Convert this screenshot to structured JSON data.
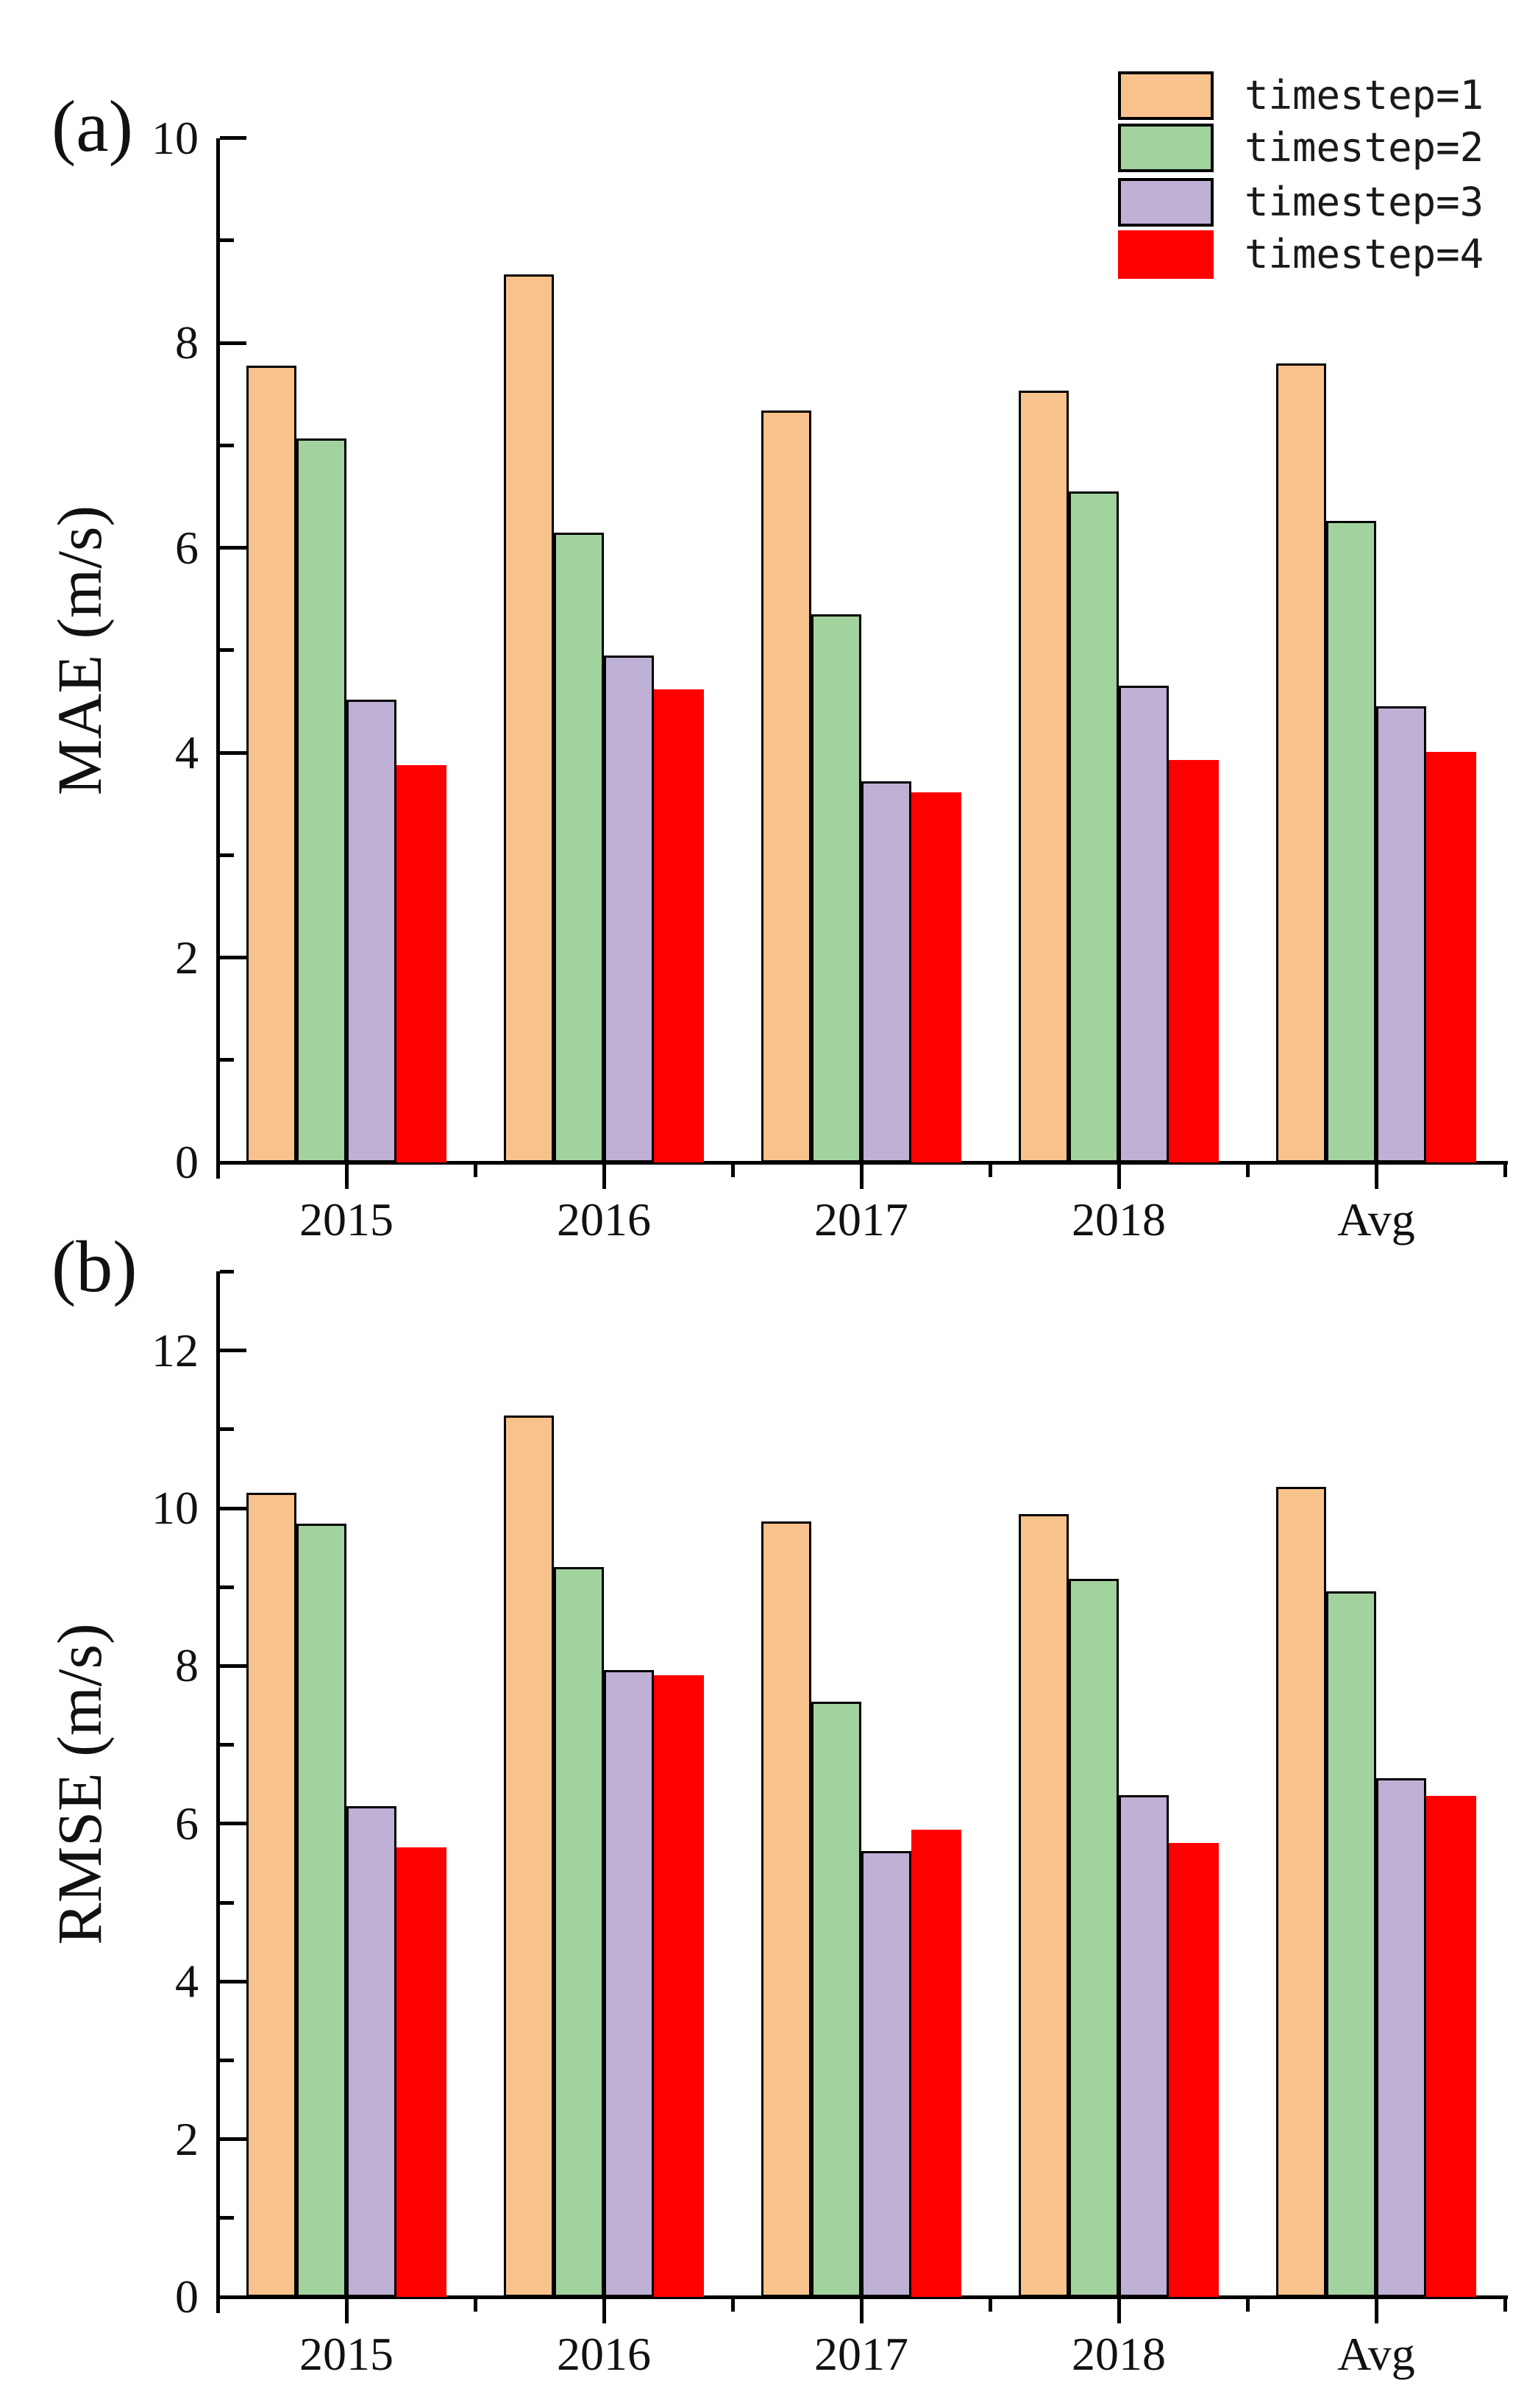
{
  "figure": {
    "panel_a_tag": "(a)",
    "panel_b_tag": "(b)",
    "panel_a_ylabel": "MAE (m/s)",
    "panel_b_ylabel": "RMSE (m/s)"
  },
  "colors": {
    "timestep1": "#F8C28C",
    "timestep2": "#A2D39E",
    "timestep3": "#BFB0D5",
    "timestep4": "#FF0000",
    "bar_border": "#000000",
    "axis": "#000000"
  },
  "chart_data": [
    {
      "type": "bar",
      "panel": "a",
      "title_tag": "(a)",
      "ylabel": "MAE (m/s)",
      "xlabel": "",
      "ylim": [
        0,
        10
      ],
      "ytick_labels": [
        0,
        2,
        4,
        6,
        8,
        10
      ],
      "yminor_ticks": [
        1,
        3,
        5,
        7,
        9
      ],
      "grid": false,
      "legend_position": "top-right",
      "categories": [
        "2015",
        "2016",
        "2017",
        "2018",
        "Avg"
      ],
      "series": [
        {
          "name": "timestep=1",
          "color": "#F8C28C",
          "border": "#000000",
          "values": [
            7.78,
            8.67,
            7.34,
            7.53,
            7.8
          ]
        },
        {
          "name": "timestep=2",
          "color": "#A2D39E",
          "border": "#000000",
          "values": [
            7.07,
            6.15,
            5.35,
            6.55,
            6.26
          ]
        },
        {
          "name": "timestep=3",
          "color": "#BFB0D5",
          "border": "#000000",
          "values": [
            4.52,
            4.95,
            3.72,
            4.65,
            4.45
          ]
        },
        {
          "name": "timestep=4",
          "color": "#FF0000",
          "border": null,
          "values": [
            3.88,
            4.62,
            3.61,
            3.93,
            4.01
          ]
        }
      ]
    },
    {
      "type": "bar",
      "panel": "b",
      "title_tag": "(b)",
      "ylabel": "RMSE (m/s)",
      "xlabel": "",
      "ylim": [
        0,
        13
      ],
      "ytick_labels": [
        0,
        2,
        4,
        6,
        8,
        10,
        12
      ],
      "yminor_ticks": [
        1,
        3,
        5,
        7,
        9,
        11,
        13
      ],
      "grid": false,
      "legend_position": "none",
      "categories": [
        "2015",
        "2016",
        "2017",
        "2018",
        "Avg"
      ],
      "series": [
        {
          "name": "timestep=1",
          "color": "#F8C28C",
          "border": "#000000",
          "values": [
            10.2,
            11.18,
            9.83,
            9.93,
            10.27
          ]
        },
        {
          "name": "timestep=2",
          "color": "#A2D39E",
          "border": "#000000",
          "values": [
            9.8,
            9.25,
            7.55,
            9.1,
            8.95
          ]
        },
        {
          "name": "timestep=3",
          "color": "#BFB0D5",
          "border": "#000000",
          "values": [
            6.22,
            7.95,
            5.65,
            6.36,
            6.58
          ]
        },
        {
          "name": "timestep=4",
          "color": "#FF0000",
          "border": null,
          "values": [
            5.7,
            7.88,
            5.92,
            5.76,
            6.35
          ]
        }
      ]
    }
  ],
  "legend": {
    "entries": [
      {
        "label": "timestep=1"
      },
      {
        "label": "timestep=2"
      },
      {
        "label": "timestep=3"
      },
      {
        "label": "timestep=4"
      }
    ]
  }
}
